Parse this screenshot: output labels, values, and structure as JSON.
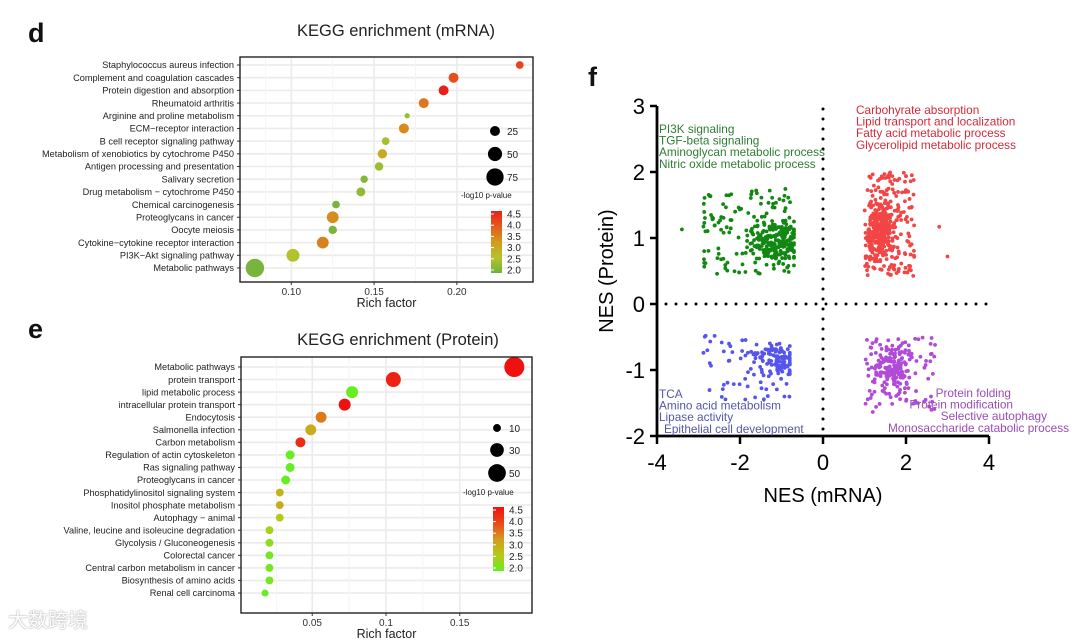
{
  "panel_labels": {
    "d": "d",
    "e": "e",
    "f": "f"
  },
  "watermark": "大数跨境",
  "chart_data": [
    {
      "id": "d",
      "type": "scatter",
      "subtype": "bubble",
      "title": "KEGG enrichment (mRNA)",
      "xlabel": "Rich factor",
      "xlim": [
        0.069,
        0.246
      ],
      "xticks": [
        0.1,
        0.15,
        0.2
      ],
      "xtick_labels": [
        "0.10",
        "0.15",
        "0.20"
      ],
      "grid": true,
      "categories": [
        "Staphylococcus aureus infection",
        "Complement and coagulation cascades",
        "Protein digestion and absorption",
        "Rheumatoid arthritis",
        "Arginine and proline metabolism",
        "ECM−receptor interaction",
        "B cell receptor signaling pathway",
        "Metabolism of xenobiotics by cytochrome P450",
        "Antigen processing and presentation",
        "Salivary secretion",
        "Drug metabolism − cytochrome P450",
        "Chemical carcinogenesis",
        "Proteoglycans in cancer",
        "Oocyte meiosis",
        "Cytokine−cytokine receptor interaction",
        "PI3K−Akt signaling pathway",
        "Metabolic pathways"
      ],
      "rich_factor": [
        0.238,
        0.198,
        0.192,
        0.18,
        0.17,
        0.168,
        0.157,
        0.155,
        0.153,
        0.144,
        0.142,
        0.127,
        0.125,
        0.125,
        0.119,
        0.101,
        0.078
      ],
      "gene_count": [
        15,
        25,
        25,
        25,
        7,
        25,
        15,
        22,
        18,
        14,
        20,
        15,
        35,
        18,
        35,
        42,
        85
      ],
      "neg_log10_p": [
        4.1,
        4.0,
        4.5,
        3.6,
        2.4,
        3.4,
        2.5,
        3.0,
        2.4,
        2.2,
        2.3,
        2.1,
        3.4,
        2.1,
        3.5,
        2.6,
        2.1
      ],
      "size_legend": {
        "values": [
          25,
          50,
          75
        ],
        "labels": [
          "25",
          "50",
          "75"
        ]
      },
      "color_legend": {
        "title": "-log10 p-value",
        "range": [
          2.0,
          4.5
        ],
        "labels": [
          "4.5",
          "4.0",
          "3.5",
          "3.0",
          "2.5",
          "2.0"
        ],
        "colors": [
          "#6db33f",
          "#b6c22a",
          "#d49a1f",
          "#e55a1c",
          "#e8201c"
        ]
      },
      "size_scale": 1.0,
      "legend_position": "right"
    },
    {
      "id": "e",
      "type": "scatter",
      "subtype": "bubble",
      "title": "KEGG enrichment (Protein)",
      "xlabel": "Rich factor",
      "xlim": [
        0.0017,
        0.199
      ],
      "xticks": [
        0.05,
        0.1,
        0.15
      ],
      "xtick_labels": [
        "0.05",
        "0.1",
        "0.15"
      ],
      "grid": true,
      "categories": [
        "Metabolic pathways",
        "protein transport",
        "lipid metabolic process",
        "intracellular protein transport",
        "Endocytosis",
        "Salmonella infection",
        "Carbon metabolism",
        "Regulation of actin cytoskeleton",
        "Ras signaling pathway",
        "Proteoglycans in cancer",
        "Phosphatidylinositol signaling system",
        "Inositol phosphate metabolism",
        "Autophagy − animal",
        "Valine, leucine and isoleucine degradation",
        "Glycolysis / Gluconeogenesis",
        "Colorectal cancer",
        "Central carbon metabolism in cancer",
        "Biosynthesis of amino acids",
        "Renal cell carcinoma"
      ],
      "rich_factor": [
        0.187,
        0.105,
        0.077,
        0.072,
        0.056,
        0.049,
        0.042,
        0.035,
        0.035,
        0.032,
        0.028,
        0.028,
        0.028,
        0.021,
        0.021,
        0.021,
        0.021,
        0.021,
        0.018
      ],
      "gene_count": [
        64,
        36,
        23,
        23,
        19,
        19,
        16,
        13,
        13,
        13,
        10,
        10,
        10,
        10,
        10,
        10,
        10,
        10,
        8
      ],
      "neg_log10_p": [
        4.6,
        4.3,
        2.0,
        4.6,
        3.5,
        3.0,
        4.2,
        2.0,
        2.0,
        2.0,
        2.9,
        3.0,
        2.6,
        2.5,
        2.3,
        2.1,
        2.1,
        2.1,
        2.0
      ],
      "size_legend": {
        "values": [
          10,
          30,
          50
        ],
        "labels": [
          "10",
          "30",
          "50"
        ]
      },
      "color_legend": {
        "title": "-log10 p-value",
        "range": [
          2.0,
          4.5
        ],
        "labels": [
          "4.5",
          "4.0",
          "3.5",
          "3.0",
          "2.5",
          "2.0"
        ],
        "colors": [
          "#66ee22",
          "#b8c81a",
          "#d49a1f",
          "#e8481a",
          "#f01010"
        ]
      },
      "size_scale": 1.25,
      "legend_position": "right"
    },
    {
      "id": "f",
      "type": "scatter",
      "xlabel": "NES (mRNA)",
      "ylabel": "NES (Protein)",
      "xlim": [
        -4,
        4
      ],
      "ylim": [
        -2,
        3
      ],
      "xticks": [
        -4,
        -2,
        0,
        2,
        4
      ],
      "yticks": [
        -2,
        -1,
        0,
        1,
        2,
        3
      ],
      "xtick_labels": [
        "-4",
        "-2",
        "0",
        "2",
        "4"
      ],
      "ytick_labels": [
        "-2",
        "-1",
        "0",
        "1",
        "2",
        "3"
      ],
      "reference_lines": {
        "x": 0,
        "y": 0,
        "style": "dotted"
      },
      "clusters": [
        {
          "name": "mRNA down / protein up",
          "color": "#118811",
          "n": 320,
          "x_range": [
            -2.9,
            -0.7
          ],
          "y_range": [
            0.45,
            1.75
          ],
          "center": [
            -1.1,
            0.95
          ],
          "labels": [
            "PI3K signaling",
            "TGF-beta signaling",
            "Aminoglycan metabolic process",
            "Nitric oxide metabolic process"
          ],
          "label_color": "#2e7d32"
        },
        {
          "name": "mRNA up / protein up",
          "color": "#f24545",
          "n": 420,
          "x_range": [
            1.0,
            2.2
          ],
          "y_range": [
            0.42,
            2.0
          ],
          "center": [
            1.4,
            1.1
          ],
          "labels": [
            "Carbohyrate absorption",
            "Lipid transport and localization",
            "Fatty acid metabolic process",
            "Glycerolipid metabolic process"
          ],
          "label_color": "#d42a3a"
        },
        {
          "name": "mRNA down / protein down",
          "color": "#5555ee",
          "n": 160,
          "x_range": [
            -2.9,
            -0.8
          ],
          "y_range": [
            -1.45,
            -0.48
          ],
          "center": [
            -1.1,
            -0.85
          ],
          "labels": [
            "TCA",
            "Amino acid metabolism",
            "Lipase activity",
            "Epithelial cell development"
          ],
          "label_color": "#5555aa"
        },
        {
          "name": "mRNA up / protein down",
          "color": "#b24ad8",
          "n": 220,
          "x_range": [
            1.0,
            2.7
          ],
          "y_range": [
            -1.65,
            -0.5
          ],
          "center": [
            1.7,
            -0.95
          ],
          "labels": [
            "Protein folding",
            "Protein modification",
            "Selective autophagy",
            "Monosaccharide catabolic process"
          ],
          "label_color": "#9a4cb8"
        }
      ],
      "outliers": [
        [
          -3.4,
          1.13
        ],
        [
          2.8,
          1.17
        ],
        [
          3.0,
          0.72
        ],
        [
          2.7,
          -0.62
        ]
      ]
    }
  ]
}
